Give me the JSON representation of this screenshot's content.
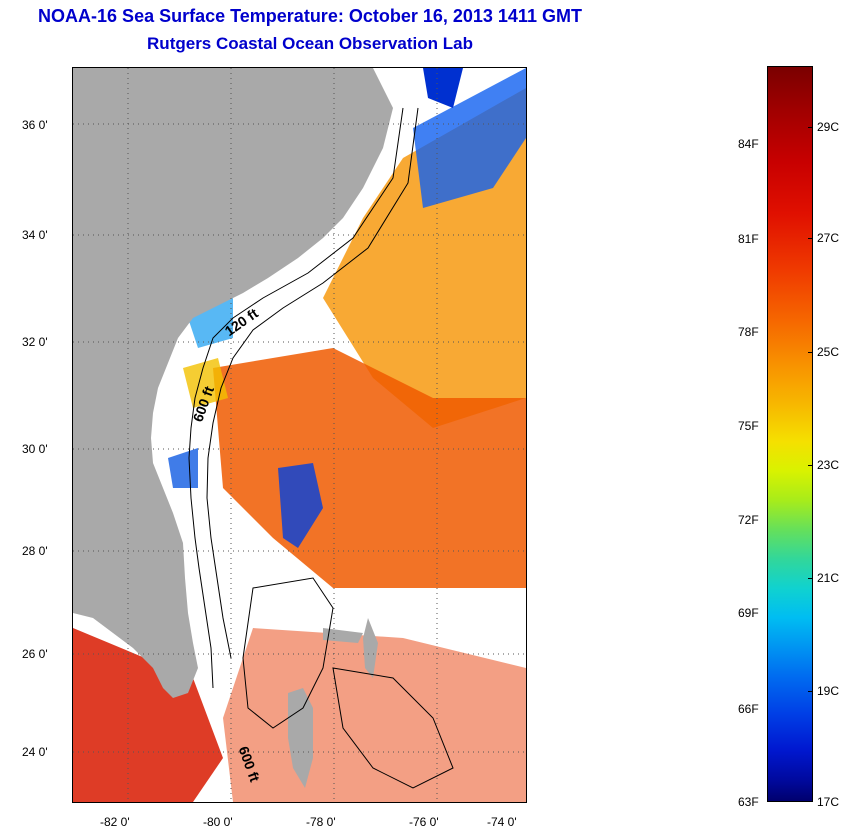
{
  "title": {
    "line1": "NOAA-16 Sea Surface Temperature:  October 16, 2013 1411 GMT",
    "line2": "Rutgers Coastal Ocean Observation Lab"
  },
  "map": {
    "lat_labels": [
      "36 0'",
      "34 0'",
      "32 0'",
      "30 0'",
      "28 0'",
      "26 0'",
      "24 0'"
    ],
    "lon_labels": [
      "-82 0'",
      "-80 0'",
      "-78 0'",
      "-76 0'",
      "-74 0'"
    ],
    "contour_labels": [
      "120 ft",
      "600 ft",
      "600 ft"
    ],
    "colors": {
      "land": "#a9a9a9",
      "cloud": "#ffffff",
      "warm": "#f25a00",
      "cool": "#0030d0"
    }
  },
  "colorbar": {
    "fahrenheit": [
      "84F",
      "81F",
      "78F",
      "75F",
      "72F",
      "69F",
      "66F",
      "63F"
    ],
    "celsius": [
      "29C",
      "27C",
      "25C",
      "23C",
      "21C",
      "19C",
      "17C"
    ]
  }
}
